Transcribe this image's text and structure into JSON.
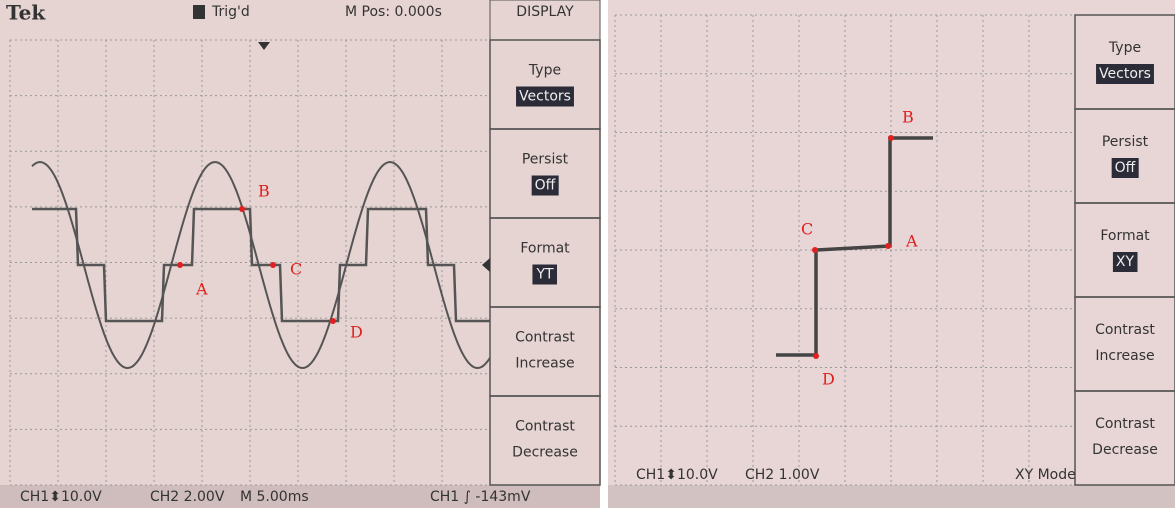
{
  "left": {
    "header": {
      "brand": "Tek",
      "trigger": "Trig'd",
      "position": "M Pos: 0.000s",
      "menu_title": "DISPLAY"
    },
    "menu": [
      {
        "label": "Type",
        "value": "Vectors"
      },
      {
        "label": "Persist",
        "value": "Off"
      },
      {
        "label": "Format",
        "value": "YT"
      },
      {
        "label": "Contrast",
        "value": "Increase"
      },
      {
        "label": "Contrast",
        "value": "Decrease"
      }
    ],
    "footer": [
      "CH1⬍10.0V",
      "CH2  2.00V",
      "M 5.00ms",
      "CH1 ∫ -143mV"
    ],
    "points": [
      "A",
      "B",
      "C",
      "D"
    ]
  },
  "right": {
    "menu": [
      {
        "label": "Type",
        "value": "Vectors"
      },
      {
        "label": "Persist",
        "value": "Off"
      },
      {
        "label": "Format",
        "value": "XY"
      },
      {
        "label": "Contrast",
        "value": "Increase"
      },
      {
        "label": "Contrast",
        "value": "Decrease"
      }
    ],
    "footer": [
      "CH1⬍10.0V",
      "CH2  1.00V",
      "XY Mode"
    ],
    "points": [
      "A",
      "B",
      "C",
      "D"
    ]
  }
}
